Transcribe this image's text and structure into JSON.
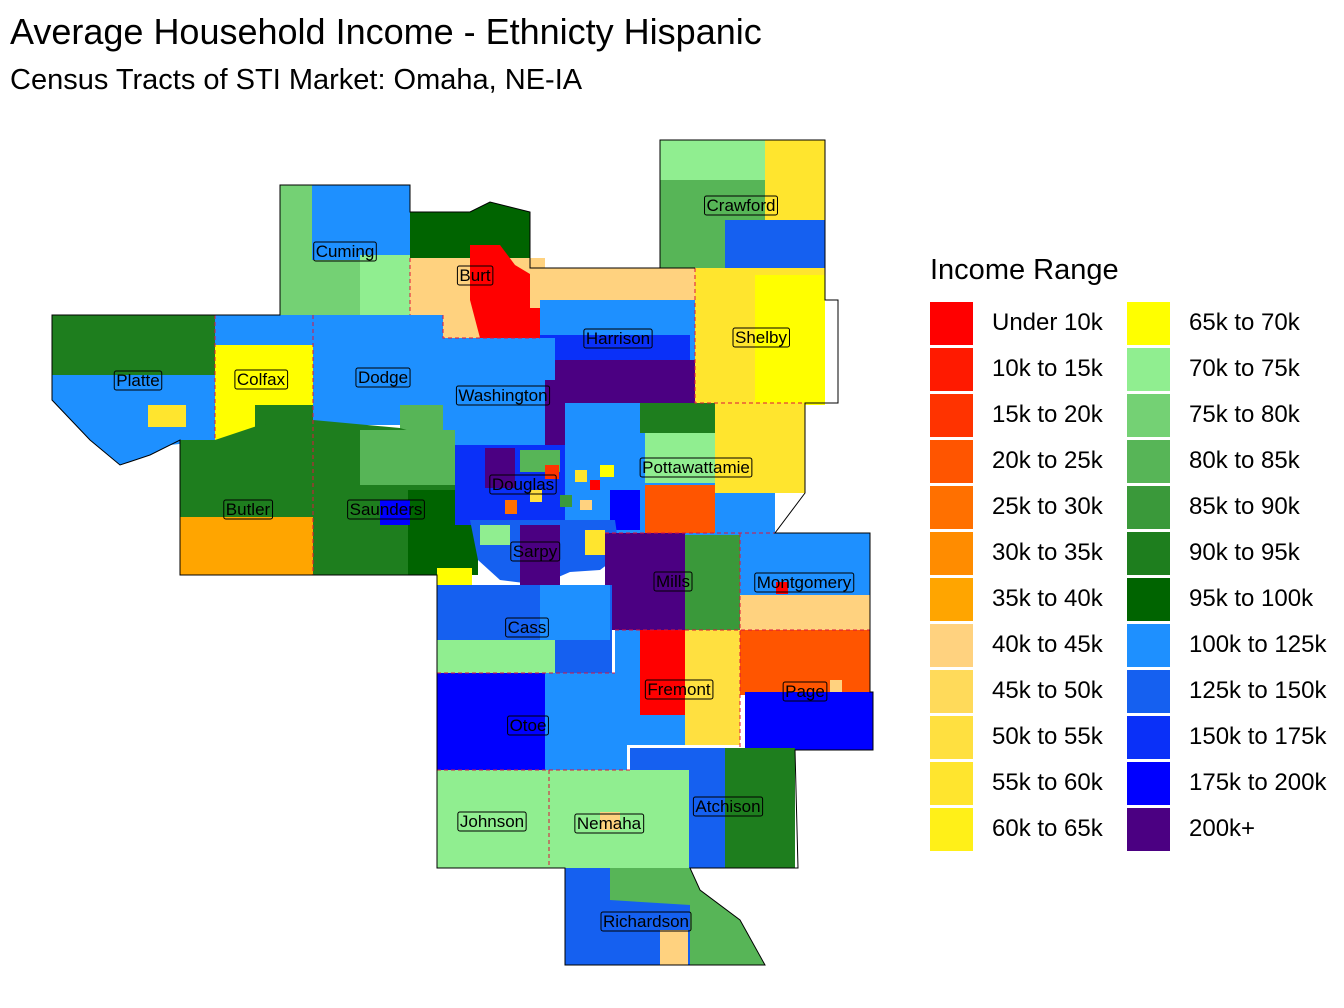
{
  "title": "Average Household Income - Ethnicty Hispanic",
  "subtitle": "Census Tracts of STI Market: Omaha, NE-IA",
  "legend": {
    "title": "Income Range",
    "items": [
      {
        "label": "Under 10k",
        "color": "#FF0000"
      },
      {
        "label": "10k to 15k",
        "color": "#FF1A00"
      },
      {
        "label": "15k to 20k",
        "color": "#FF3300"
      },
      {
        "label": "20k to 25k",
        "color": "#FF5500"
      },
      {
        "label": "25k to 30k",
        "color": "#FF7000"
      },
      {
        "label": "30k to 35k",
        "color": "#FF8C00"
      },
      {
        "label": "35k to 40k",
        "color": "#FFA500"
      },
      {
        "label": "40k to 45k",
        "color": "#FFD27F"
      },
      {
        "label": "45k to 50k",
        "color": "#FFDA5A"
      },
      {
        "label": "50k to 55k",
        "color": "#FFE040"
      },
      {
        "label": "55k to 60k",
        "color": "#FFE52E"
      },
      {
        "label": "60k to 65k",
        "color": "#FFF018"
      },
      {
        "label": "65k to 70k",
        "color": "#FFFF00"
      },
      {
        "label": "70k to 75k",
        "color": "#90EE90"
      },
      {
        "label": "75k to 80k",
        "color": "#74D174"
      },
      {
        "label": "80k to 85k",
        "color": "#57B557"
      },
      {
        "label": "85k to 90k",
        "color": "#3A993A"
      },
      {
        "label": "90k to 95k",
        "color": "#1E7E1E"
      },
      {
        "label": "95k to 100k",
        "color": "#006400"
      },
      {
        "label": "100k to 125k",
        "color": "#1E90FF"
      },
      {
        "label": "125k to 150k",
        "color": "#1560F0"
      },
      {
        "label": "150k to 175k",
        "color": "#0A30F8"
      },
      {
        "label": "175k to 200k",
        "color": "#0000FF"
      },
      {
        "label": "200k+",
        "color": "#4B0082"
      }
    ]
  },
  "counties": [
    {
      "name": "Cuming"
    },
    {
      "name": "Burt"
    },
    {
      "name": "Crawford"
    },
    {
      "name": "Harrison"
    },
    {
      "name": "Shelby"
    },
    {
      "name": "Platte"
    },
    {
      "name": "Colfax"
    },
    {
      "name": "Dodge"
    },
    {
      "name": "Washington"
    },
    {
      "name": "Pottawattamie"
    },
    {
      "name": "Douglas"
    },
    {
      "name": "Butler"
    },
    {
      "name": "Saunders"
    },
    {
      "name": "Sarpy"
    },
    {
      "name": "Mills"
    },
    {
      "name": "Montgomery"
    },
    {
      "name": "Cass"
    },
    {
      "name": "Fremont"
    },
    {
      "name": "Page"
    },
    {
      "name": "Otoe"
    },
    {
      "name": "Atchison"
    },
    {
      "name": "Johnson"
    },
    {
      "name": "Nemaha"
    },
    {
      "name": "Richardson"
    }
  ]
}
